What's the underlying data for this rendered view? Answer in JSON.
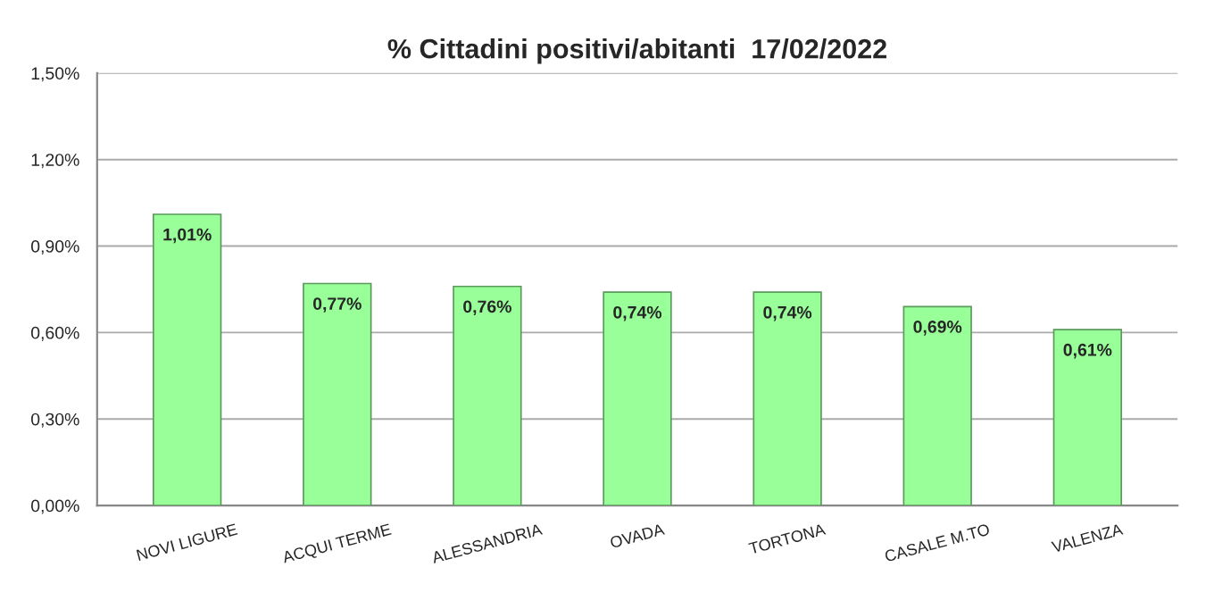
{
  "chart_data": {
    "type": "bar",
    "title": "% Cittadini positivi/abitanti  17/02/2022",
    "categories": [
      "NOVI LIGURE",
      "ACQUI TERME",
      "ALESSANDRIA",
      "OVADA",
      "TORTONA",
      "CASALE M.TO",
      "VALENZA"
    ],
    "values": [
      1.01,
      0.77,
      0.76,
      0.74,
      0.74,
      0.69,
      0.61
    ],
    "value_labels": [
      "1,01%",
      "0,77%",
      "0,76%",
      "0,74%",
      "0,74%",
      "0,69%",
      "0,61%"
    ],
    "color": "#99ff99",
    "ylim": [
      0,
      1.5
    ],
    "yticks": [
      {
        "value": 0,
        "label": "0,00%"
      },
      {
        "value": 0.3,
        "label": "0,30%"
      },
      {
        "value": 0.6,
        "label": "0,60%"
      },
      {
        "value": 0.9,
        "label": "0,90%"
      },
      {
        "value": 1.2,
        "label": "1,20%"
      },
      {
        "value": 1.5,
        "label": "1,50%"
      }
    ],
    "grid": "y",
    "legend": false
  }
}
